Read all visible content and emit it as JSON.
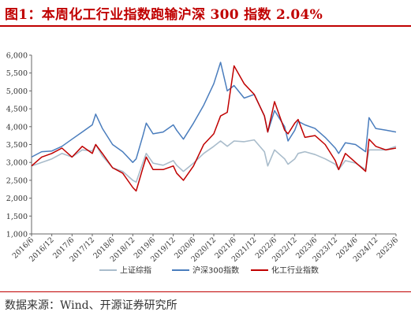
{
  "header": {
    "title": "图1：本周化工行业指数跑输沪深 300 指数 2.04%"
  },
  "footer": {
    "source": "数据来源：Wind、开源证券研究所"
  },
  "chart_data": {
    "type": "line",
    "title": "",
    "xlabel": "",
    "ylabel": "",
    "ylim": [
      1000,
      6000
    ],
    "yticks": [
      1000,
      1500,
      2000,
      2500,
      3000,
      3500,
      4000,
      4500,
      5000,
      5500,
      6000
    ],
    "ytick_labels": [
      "1,000",
      "1,500",
      "2,000",
      "2,500",
      "3,000",
      "3,500",
      "4,000",
      "4,500",
      "5,000",
      "5,500",
      "6,000"
    ],
    "xlim": [
      "2016-06",
      "2025-06"
    ],
    "xtick_labels": [
      "2016/6",
      "2016/12",
      "2017/6",
      "2017/12",
      "2018/6",
      "2018/12",
      "2019/6",
      "2019/12",
      "2020/6",
      "2020/12",
      "2021/6",
      "2021/12",
      "2022/6",
      "2022/12",
      "2023/6",
      "2023/12",
      "2024/6",
      "2024/12",
      "2025/6"
    ],
    "legend_position": "bottom",
    "grid": false,
    "x": [
      "2016-06",
      "2016-09",
      "2016-12",
      "2017-03",
      "2017-06",
      "2017-09",
      "2017-12",
      "2018-01",
      "2018-03",
      "2018-06",
      "2018-09",
      "2018-12",
      "2019-01",
      "2019-03",
      "2019-04",
      "2019-06",
      "2019-09",
      "2019-12",
      "2020-01",
      "2020-03",
      "2020-06",
      "2020-09",
      "2020-12",
      "2021-02",
      "2021-04",
      "2021-06",
      "2021-09",
      "2021-12",
      "2022-03",
      "2022-04",
      "2022-06",
      "2022-09",
      "2022-10",
      "2022-12",
      "2023-01",
      "2023-03",
      "2023-06",
      "2023-09",
      "2023-12",
      "2024-01",
      "2024-03",
      "2024-06",
      "2024-09",
      "2024-10",
      "2024-12",
      "2025-03",
      "2025-06"
    ],
    "series": [
      {
        "name": "上证综指",
        "color": "#a9bccb",
        "values": [
          2900,
          3000,
          3100,
          3250,
          3150,
          3350,
          3320,
          3500,
          3180,
          2850,
          2750,
          2500,
          2450,
          3000,
          3250,
          2980,
          2920,
          3050,
          2920,
          2750,
          2980,
          3250,
          3450,
          3600,
          3450,
          3600,
          3580,
          3630,
          3300,
          2900,
          3350,
          3100,
          2950,
          3100,
          3250,
          3300,
          3220,
          3100,
          2950,
          2800,
          3050,
          2980,
          2800,
          3350,
          3350,
          3350,
          3450
        ]
      },
      {
        "name": "沪深300指数",
        "color": "#4a7dbd",
        "values": [
          3150,
          3300,
          3320,
          3450,
          3650,
          3850,
          4050,
          4350,
          3950,
          3500,
          3300,
          3000,
          3100,
          3750,
          4100,
          3800,
          3850,
          4050,
          3900,
          3650,
          4100,
          4600,
          5200,
          5800,
          5000,
          5150,
          4800,
          4900,
          4300,
          3850,
          4450,
          4000,
          3600,
          3900,
          4150,
          4050,
          3950,
          3700,
          3400,
          3250,
          3550,
          3500,
          3300,
          4250,
          3950,
          3900,
          3850
        ]
      },
      {
        "name": "化工行业指数",
        "color": "#c00000",
        "values": [
          2900,
          3150,
          3250,
          3400,
          3150,
          3450,
          3250,
          3500,
          3250,
          2850,
          2700,
          2300,
          2200,
          2850,
          3150,
          2800,
          2800,
          2900,
          2700,
          2500,
          2900,
          3500,
          3800,
          4300,
          4400,
          5700,
          5200,
          4900,
          4300,
          3850,
          4700,
          3900,
          3800,
          4100,
          4200,
          3700,
          3750,
          3500,
          3050,
          2800,
          3250,
          3000,
          2750,
          3650,
          3450,
          3350,
          3400
        ]
      }
    ]
  }
}
